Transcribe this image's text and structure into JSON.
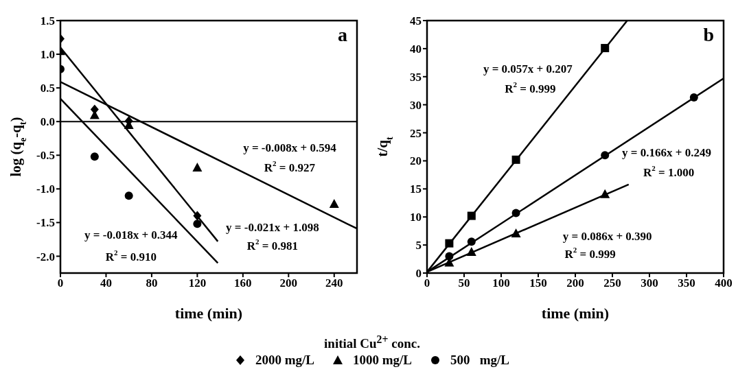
{
  "chart_data": [
    {
      "type": "scatter",
      "title": "a",
      "xlabel": "time (min)",
      "ylabel": "log (q$_{e}$-q$_{t}$)",
      "legend": "bottom",
      "legend_title": "initial Cu$^{2+}$ conc.",
      "xlim": [
        0,
        260
      ],
      "xticks": [
        0,
        40,
        80,
        120,
        160,
        200,
        240
      ],
      "ylim": [
        -2.25,
        1.5
      ],
      "yticks": [
        {
          "value": -2,
          "label": "-2.0"
        },
        -1.5,
        {
          "value": -1,
          "label": "-1.0"
        },
        -0.5,
        {
          "value": 0,
          "label": "0.0"
        },
        0.5,
        {
          "value": 1,
          "label": "1.0"
        },
        1.5
      ],
      "ref_lines": [
        {
          "axis": "y",
          "value": 0,
          "label": null,
          "color": "#000000"
        }
      ],
      "series": [
        {
          "name": "2000 mg/L",
          "color": "#000000",
          "marker": "diamond",
          "x": [
            0,
            30,
            60,
            120
          ],
          "values": [
            1.23,
            0.18,
            0.01,
            -1.4
          ]
        },
        {
          "name": "1000 mg/L",
          "color": "#000000",
          "marker": "triangle",
          "x": [
            0,
            30,
            60,
            120,
            240
          ],
          "values": [
            1.05,
            0.1,
            -0.05,
            -0.68,
            -1.22
          ]
        },
        {
          "name": "500   mg/L",
          "color": "#000000",
          "marker": "circle",
          "x": [
            0,
            30,
            60,
            120
          ],
          "values": [
            0.78,
            -0.52,
            -1.1,
            -1.52
          ]
        },
        {
          "type": "line",
          "color": "#000000",
          "x": [
            0,
            138
          ],
          "values": [
            1.1,
            -1.78
          ]
        },
        {
          "type": "line",
          "color": "#000000",
          "x": [
            0,
            138
          ],
          "values": [
            0.34,
            -2.1
          ]
        },
        {
          "type": "line",
          "color": "#000000",
          "x": [
            0,
            260
          ],
          "values": [
            0.59,
            -1.59
          ]
        }
      ],
      "annotations": [
        "y = -0.008x + 0.594",
        "R$^{2}$ = 0.927",
        "y = -0.021x + 1.098",
        "R$^{2}$ = 0.981",
        "y = -0.018x + 0.344",
        "R$^{2}$ = 0.910"
      ]
    },
    {
      "type": "scatter",
      "title": "b",
      "xlabel": "time (min)",
      "ylabel": "t/q$_{t}$",
      "xlim": [
        0,
        400
      ],
      "xticks": [
        0,
        50,
        100,
        150,
        200,
        250,
        300,
        350,
        400
      ],
      "ylim": [
        0,
        45
      ],
      "yticks": [
        0,
        5,
        10,
        15,
        20,
        25,
        30,
        35,
        40,
        45
      ],
      "series": [
        {
          "color": "#000000",
          "marker": "square",
          "x": [
            30,
            60,
            120,
            240
          ],
          "values": [
            5.3,
            10.2,
            20.2,
            40.1
          ]
        },
        {
          "color": "#000000",
          "marker": "circle",
          "x": [
            30,
            60,
            120,
            240,
            360
          ],
          "values": [
            3.0,
            5.6,
            10.7,
            21.0,
            31.3
          ]
        },
        {
          "color": "#000000",
          "marker": "triangle",
          "x": [
            30,
            60,
            120,
            240
          ],
          "values": [
            1.9,
            3.8,
            7.1,
            14.1
          ]
        },
        {
          "type": "line",
          "color": "#000000",
          "x": [
            0,
            270
          ],
          "values": [
            0.2,
            45
          ]
        },
        {
          "type": "line",
          "color": "#000000",
          "x": [
            0,
            400
          ],
          "values": [
            0.2,
            34.7
          ]
        },
        {
          "type": "line",
          "color": "#000000",
          "x": [
            0,
            272
          ],
          "values": [
            0.2,
            15.8
          ]
        }
      ],
      "annotations": [
        "y = 0.057x + 0.207",
        "R$^{2}$ = 0.999",
        "y = 0.166x + 0.249",
        "R$^{2}$ = 1.000",
        "y = 0.086x + 0.390",
        "R$^{2}$ = 0.999"
      ]
    }
  ]
}
